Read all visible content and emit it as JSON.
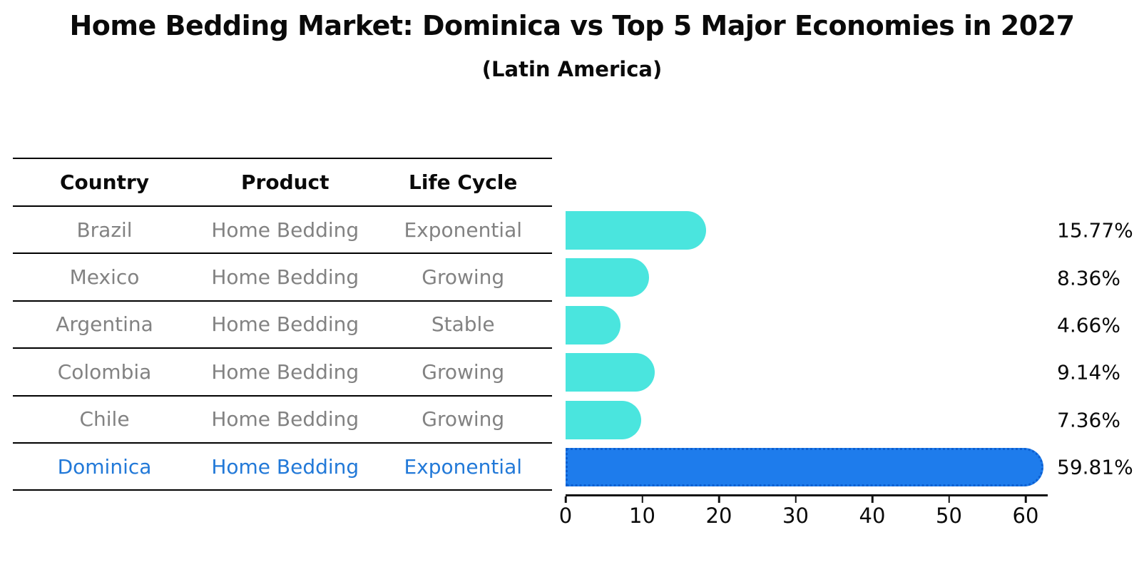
{
  "page": {
    "title": "Home Bedding Market: Dominica vs Top 5 Major Economies in 2027",
    "subtitle": "(Latin America)"
  },
  "colors": {
    "bar_cyan": "#4AE5DE",
    "bar_blue": "#1E7CEC",
    "bar_blue_dot_edge": "#0d5fd0",
    "highlight_text_blue": "#2279D8",
    "table_text_gray": "#828282",
    "text_black": "#0a0a0a"
  },
  "table": {
    "columns": [
      "Country",
      "Product",
      "Life Cycle"
    ],
    "rows": [
      {
        "country": "Brazil",
        "product": "Home Bedding",
        "life_cycle": "Exponential",
        "highlight": false
      },
      {
        "country": "Mexico",
        "product": "Home Bedding",
        "life_cycle": "Growing",
        "highlight": false
      },
      {
        "country": "Argentina",
        "product": "Home Bedding",
        "life_cycle": "Stable",
        "highlight": false
      },
      {
        "country": "Colombia",
        "product": "Home Bedding",
        "life_cycle": "Growing",
        "highlight": false
      },
      {
        "country": "Chile",
        "product": "Home Bedding",
        "life_cycle": "Growing",
        "highlight": false
      },
      {
        "country": "Dominica",
        "product": "Home Bedding",
        "life_cycle": "Exponential",
        "highlight": true
      }
    ]
  },
  "chart_data": {
    "type": "bar",
    "orientation": "horizontal",
    "title": "Home Bedding Market: Dominica vs Top 5 Major Economies in 2027",
    "subtitle": "(Latin America)",
    "categories": [
      "Brazil",
      "Mexico",
      "Argentina",
      "Colombia",
      "Chile",
      "Dominica"
    ],
    "values": [
      15.77,
      8.36,
      4.66,
      9.14,
      7.36,
      59.81
    ],
    "value_labels": [
      "15.77%",
      "8.36%",
      "4.66%",
      "9.14%",
      "7.36%",
      "59.81%"
    ],
    "highlight_category": "Dominica",
    "xlabel": "",
    "ylabel": "",
    "xlim": [
      0,
      62.8
    ],
    "xticks": [
      0,
      10,
      20,
      30,
      40,
      50,
      60
    ],
    "xtick_labels": [
      "0",
      "10",
      "20",
      "30",
      "40",
      "50",
      "60"
    ],
    "grid": false,
    "legend": false
  }
}
